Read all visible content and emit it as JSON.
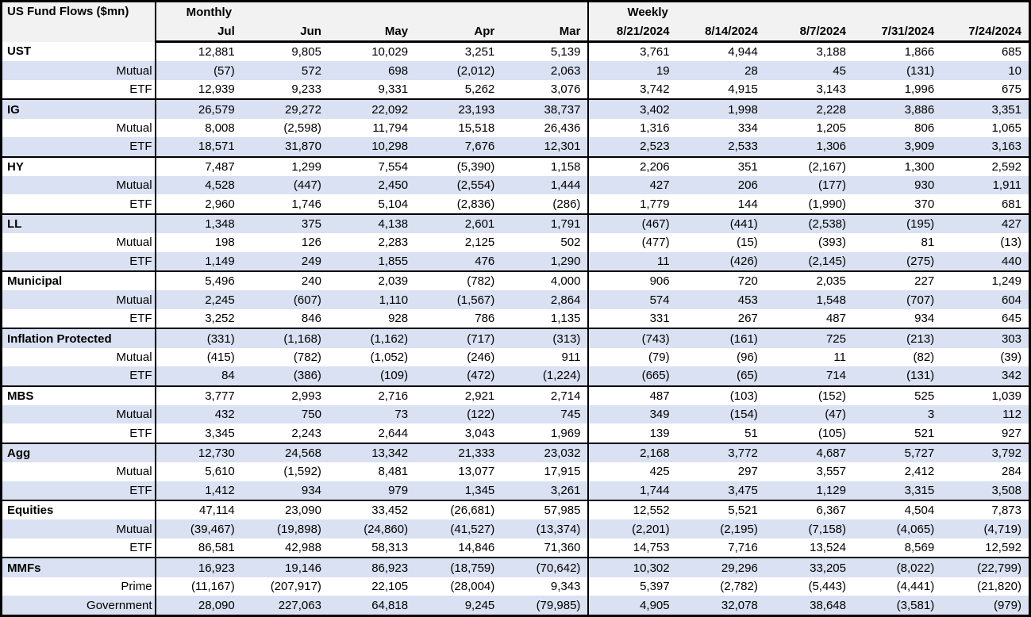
{
  "colors": {
    "stripe": "#d9e1f2",
    "header_bg": "#f2f2f2",
    "border": "#000000",
    "text": "#000000"
  },
  "header": {
    "title": "US Fund Flows ($mn)",
    "monthly_label": "Monthly",
    "weekly_label": "Weekly",
    "monthly_columns": [
      "Jul",
      "Jun",
      "May",
      "Apr",
      "Mar"
    ],
    "weekly_columns": [
      "8/21/2024",
      "8/14/2024",
      "8/7/2024",
      "7/31/2024",
      "7/24/2024"
    ]
  },
  "chart_data": {
    "type": "table",
    "title": "US Fund Flows ($mn)",
    "sections": [
      {
        "label": "Monthly",
        "columns": [
          "Jul",
          "Jun",
          "May",
          "Apr",
          "Mar"
        ]
      },
      {
        "label": "Weekly",
        "columns": [
          "8/21/2024",
          "8/14/2024",
          "8/7/2024",
          "7/31/2024",
          "7/24/2024"
        ]
      }
    ],
    "number_format": "comma thousands separator; negatives shown in parentheses",
    "groups": [
      {
        "name": "UST",
        "rows": [
          {
            "label": "UST",
            "monthly": [
              12881,
              9805,
              10029,
              3251,
              5139
            ],
            "weekly": [
              3761,
              4944,
              3188,
              1866,
              685
            ]
          },
          {
            "label": "Mutual",
            "monthly": [
              -57,
              572,
              698,
              -2012,
              2063
            ],
            "weekly": [
              19,
              28,
              45,
              -131,
              10
            ]
          },
          {
            "label": "ETF",
            "monthly": [
              12939,
              9233,
              9331,
              5262,
              3076
            ],
            "weekly": [
              3742,
              4915,
              3143,
              1996,
              675
            ]
          }
        ]
      },
      {
        "name": "IG",
        "rows": [
          {
            "label": "IG",
            "monthly": [
              26579,
              29272,
              22092,
              23193,
              38737
            ],
            "weekly": [
              3402,
              1998,
              2228,
              3886,
              3351
            ]
          },
          {
            "label": "Mutual",
            "monthly": [
              8008,
              -2598,
              11794,
              15518,
              26436
            ],
            "weekly": [
              1316,
              334,
              1205,
              806,
              1065
            ]
          },
          {
            "label": "ETF",
            "monthly": [
              18571,
              31870,
              10298,
              7676,
              12301
            ],
            "weekly": [
              2523,
              2533,
              1306,
              3909,
              3163
            ]
          }
        ]
      },
      {
        "name": "HY",
        "rows": [
          {
            "label": "HY",
            "monthly": [
              7487,
              1299,
              7554,
              -5390,
              1158
            ],
            "weekly": [
              2206,
              351,
              -2167,
              1300,
              2592
            ]
          },
          {
            "label": "Mutual",
            "monthly": [
              4528,
              -447,
              2450,
              -2554,
              1444
            ],
            "weekly": [
              427,
              206,
              -177,
              930,
              1911
            ]
          },
          {
            "label": "ETF",
            "monthly": [
              2960,
              1746,
              5104,
              -2836,
              -286
            ],
            "weekly": [
              1779,
              144,
              -1990,
              370,
              681
            ]
          }
        ]
      },
      {
        "name": "LL",
        "rows": [
          {
            "label": "LL",
            "monthly": [
              1348,
              375,
              4138,
              2601,
              1791
            ],
            "weekly": [
              -467,
              -441,
              -2538,
              -195,
              427
            ]
          },
          {
            "label": "Mutual",
            "monthly": [
              198,
              126,
              2283,
              2125,
              502
            ],
            "weekly": [
              -477,
              -15,
              -393,
              81,
              -13
            ]
          },
          {
            "label": "ETF",
            "monthly": [
              1149,
              249,
              1855,
              476,
              1290
            ],
            "weekly": [
              11,
              -426,
              -2145,
              -275,
              440
            ]
          }
        ]
      },
      {
        "name": "Municipal",
        "rows": [
          {
            "label": "Municipal",
            "monthly": [
              5496,
              240,
              2039,
              -782,
              4000
            ],
            "weekly": [
              906,
              720,
              2035,
              227,
              1249
            ]
          },
          {
            "label": "Mutual",
            "monthly": [
              2245,
              -607,
              1110,
              -1567,
              2864
            ],
            "weekly": [
              574,
              453,
              1548,
              -707,
              604
            ]
          },
          {
            "label": "ETF",
            "monthly": [
              3252,
              846,
              928,
              786,
              1135
            ],
            "weekly": [
              331,
              267,
              487,
              934,
              645
            ]
          }
        ]
      },
      {
        "name": "Inflation Protected",
        "rows": [
          {
            "label": "Inflation Protected",
            "monthly": [
              -331,
              -1168,
              -1162,
              -717,
              -313
            ],
            "weekly": [
              -743,
              -161,
              725,
              -213,
              303
            ]
          },
          {
            "label": "Mutual",
            "monthly": [
              -415,
              -782,
              -1052,
              -246,
              911
            ],
            "weekly": [
              -79,
              -96,
              11,
              -82,
              -39
            ]
          },
          {
            "label": "ETF",
            "monthly": [
              84,
              -386,
              -109,
              -472,
              -1224
            ],
            "weekly": [
              -665,
              -65,
              714,
              -131,
              342
            ]
          }
        ]
      },
      {
        "name": "MBS",
        "rows": [
          {
            "label": "MBS",
            "monthly": [
              3777,
              2993,
              2716,
              2921,
              2714
            ],
            "weekly": [
              487,
              -103,
              -152,
              525,
              1039
            ]
          },
          {
            "label": "Mutual",
            "monthly": [
              432,
              750,
              73,
              -122,
              745
            ],
            "weekly": [
              349,
              -154,
              -47,
              3,
              112
            ]
          },
          {
            "label": "ETF",
            "monthly": [
              3345,
              2243,
              2644,
              3043,
              1969
            ],
            "weekly": [
              139,
              51,
              -105,
              521,
              927
            ]
          }
        ]
      },
      {
        "name": "Agg",
        "rows": [
          {
            "label": "Agg",
            "monthly": [
              12730,
              24568,
              13342,
              21333,
              23032
            ],
            "weekly": [
              2168,
              3772,
              4687,
              5727,
              3792
            ]
          },
          {
            "label": "Mutual",
            "monthly": [
              5610,
              -1592,
              8481,
              13077,
              17915
            ],
            "weekly": [
              425,
              297,
              3557,
              2412,
              284
            ]
          },
          {
            "label": "ETF",
            "monthly": [
              1412,
              934,
              979,
              1345,
              3261
            ],
            "weekly": [
              1744,
              3475,
              1129,
              3315,
              3508
            ]
          }
        ]
      },
      {
        "name": "Equities",
        "rows": [
          {
            "label": "Equities",
            "monthly": [
              47114,
              23090,
              33452,
              -26681,
              57985
            ],
            "weekly": [
              12552,
              5521,
              6367,
              4504,
              7873
            ]
          },
          {
            "label": "Mutual",
            "monthly": [
              -39467,
              -19898,
              -24860,
              -41527,
              -13374
            ],
            "weekly": [
              -2201,
              -2195,
              -7158,
              -4065,
              -4719
            ]
          },
          {
            "label": "ETF",
            "monthly": [
              86581,
              42988,
              58313,
              14846,
              71360
            ],
            "weekly": [
              14753,
              7716,
              13524,
              8569,
              12592
            ]
          }
        ]
      },
      {
        "name": "MMFs",
        "rows": [
          {
            "label": "MMFs",
            "monthly": [
              16923,
              19146,
              86923,
              -18759,
              -70642
            ],
            "weekly": [
              10302,
              29296,
              33205,
              -8022,
              -22799
            ]
          },
          {
            "label": "Prime",
            "monthly": [
              -11167,
              -207917,
              22105,
              -28004,
              9343
            ],
            "weekly": [
              5397,
              -2782,
              -5443,
              -4441,
              -21820
            ]
          },
          {
            "label": "Government",
            "monthly": [
              28090,
              227063,
              64818,
              9245,
              -79985
            ],
            "weekly": [
              4905,
              32078,
              38648,
              -3581,
              -979
            ]
          }
        ]
      }
    ]
  }
}
